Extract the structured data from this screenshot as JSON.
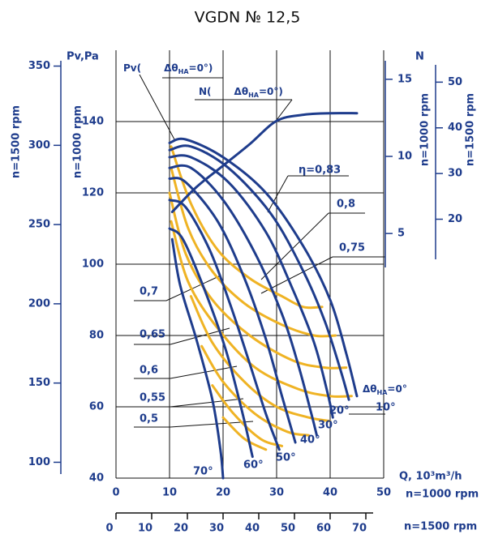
{
  "chart_data": {
    "type": "line",
    "title": "VGDN № 12,5",
    "ylabel": "Pv,Pa",
    "ylabel_1500": "n=1500 rpm",
    "ylabel_1000": "n=1000 rpm",
    "y2label": "N",
    "y2label_1000": "n=1000 rpm",
    "y2label_1500": "n=1500 rpm",
    "xlabel": "Q, 10³m³/h",
    "xlabel_1000": "n=1000 rpm",
    "xlabel_1500": "n=1500 rpm",
    "xlim": [
      0,
      50
    ],
    "xticks": [
      0,
      10,
      20,
      30,
      40,
      50
    ],
    "xlim_1500": [
      0,
      75
    ],
    "xticks_1500": [
      0,
      10,
      20,
      30,
      40,
      50,
      60,
      70
    ],
    "ylim": [
      40,
      160
    ],
    "yticks": [
      40,
      60,
      80,
      100,
      120,
      140
    ],
    "ylim_1500": [
      90,
      360
    ],
    "yticks_1500": [
      100,
      150,
      200,
      250,
      300,
      350
    ],
    "y2lim": [
      2.8,
      16.2
    ],
    "y2ticks": [
      5,
      10,
      15
    ],
    "y2lim_1500": [
      9.45,
      54.675
    ],
    "y2ticks_1500": [
      20,
      30,
      40,
      50
    ],
    "grid": true,
    "pv_note": {
      "prefix": "Pv(",
      "theta": "Δθ",
      "sub": "НА",
      "suffix": "=0°)"
    },
    "n_note": {
      "prefix": "N(",
      "theta": "Δθ",
      "sub": "НА",
      "suffix": "=0°)"
    },
    "zero_label": {
      "theta": "Δθ",
      "sub": "НА"
    },
    "series": [
      {
        "name": "=0°",
        "group": "pressure",
        "color": "#1e3c8c",
        "x": [
          10,
          13,
          20,
          28,
          35,
          40,
          43,
          45
        ],
        "values": [
          134,
          135,
          130,
          120,
          105,
          90,
          75,
          63
        ]
      },
      {
        "name": "10°",
        "group": "pressure",
        "color": "#1e3c8c",
        "x": [
          10,
          14,
          21,
          29,
          35,
          39,
          42,
          43.5
        ],
        "values": [
          132,
          133,
          127,
          114,
          98,
          84,
          70,
          62
        ]
      },
      {
        "name": "20°",
        "group": "pressure",
        "color": "#1e3c8c",
        "x": [
          10,
          14,
          21,
          28,
          33,
          37,
          39.5,
          40.5
        ],
        "values": [
          130,
          130,
          123,
          109,
          93,
          78,
          64,
          57
        ]
      },
      {
        "name": "30°",
        "group": "pressure",
        "color": "#1e3c8c",
        "x": [
          10,
          14,
          20,
          26,
          31,
          34,
          36.5,
          37.5
        ],
        "values": [
          127,
          127,
          118,
          103,
          86,
          72,
          58,
          52
        ]
      },
      {
        "name": "40°",
        "group": "pressure",
        "color": "#1e3c8c",
        "x": [
          10,
          13,
          19,
          24,
          28,
          31,
          33.5
        ],
        "values": [
          124,
          123,
          112,
          96,
          79,
          63,
          50
        ]
      },
      {
        "name": "50°",
        "group": "pressure",
        "color": "#1e3c8c",
        "x": [
          10,
          13,
          17.5,
          21.5,
          25,
          28,
          30.5
        ],
        "values": [
          118,
          116,
          104,
          88,
          72,
          58,
          48
        ]
      },
      {
        "name": "60°",
        "group": "pressure",
        "color": "#1e3c8c",
        "x": [
          10,
          12.5,
          16.5,
          20.5,
          23.5,
          25.5
        ],
        "values": [
          110,
          107,
          93,
          76,
          59,
          46
        ]
      },
      {
        "name": "70°",
        "group": "pressure",
        "color": "#1e3c8c",
        "x": [
          10.5,
          12,
          15,
          18,
          19.5,
          20
        ],
        "values": [
          107,
          94,
          79,
          62,
          48,
          40
        ]
      },
      {
        "name": "N",
        "group": "power",
        "axis": "y2",
        "color": "#1e3c8c",
        "x": [
          10.5,
          15,
          20,
          25,
          30,
          35,
          40,
          45
        ],
        "values": [
          6.4,
          8.0,
          9.4,
          10.8,
          12.3,
          12.7,
          12.8,
          12.8
        ]
      },
      {
        "name": "η=0,83",
        "group": "efficiency",
        "color": "#efb324",
        "x": [
          10.3,
          14,
          19,
          25,
          31,
          35,
          38.5
        ],
        "values": [
          133,
          117,
          104,
          96,
          91,
          88,
          88
        ]
      },
      {
        "name": "0,8",
        "group": "efficiency",
        "color": "#efb324",
        "x": [
          10.3,
          13.5,
          18,
          24,
          31,
          37,
          41
        ],
        "values": [
          127,
          110,
          98,
          89,
          83,
          80,
          80
        ]
      },
      {
        "name": "0,75",
        "group": "efficiency",
        "color": "#efb324",
        "x": [
          10,
          13,
          18,
          25,
          33,
          39,
          43
        ],
        "values": [
          120,
          103,
          90,
          80,
          73,
          71,
          71
        ]
      },
      {
        "name": "0,7",
        "group": "efficiency",
        "color": "#efb324",
        "x": [
          10.3,
          13.5,
          19,
          26,
          34,
          40,
          44
        ],
        "values": [
          112,
          95,
          82,
          71,
          65,
          63,
          63
        ]
      },
      {
        "name": "0,65",
        "group": "efficiency",
        "color": "#efb324",
        "x": [
          14,
          18,
          24,
          30,
          36,
          40
        ],
        "values": [
          91,
          78,
          67,
          60,
          57,
          56
        ]
      },
      {
        "name": "0,6",
        "group": "efficiency",
        "color": "#efb324",
        "x": [
          16,
          20,
          26,
          32,
          36
        ],
        "values": [
          77,
          67,
          58,
          53,
          52
        ]
      },
      {
        "name": "0,55",
        "group": "efficiency",
        "color": "#efb324",
        "x": [
          18,
          22,
          27,
          31
        ],
        "values": [
          66,
          58,
          51,
          49
        ]
      },
      {
        "name": "0,5",
        "group": "efficiency",
        "color": "#efb324",
        "x": [
          20,
          24,
          28
        ],
        "values": [
          57,
          51,
          48
        ]
      }
    ]
  }
}
